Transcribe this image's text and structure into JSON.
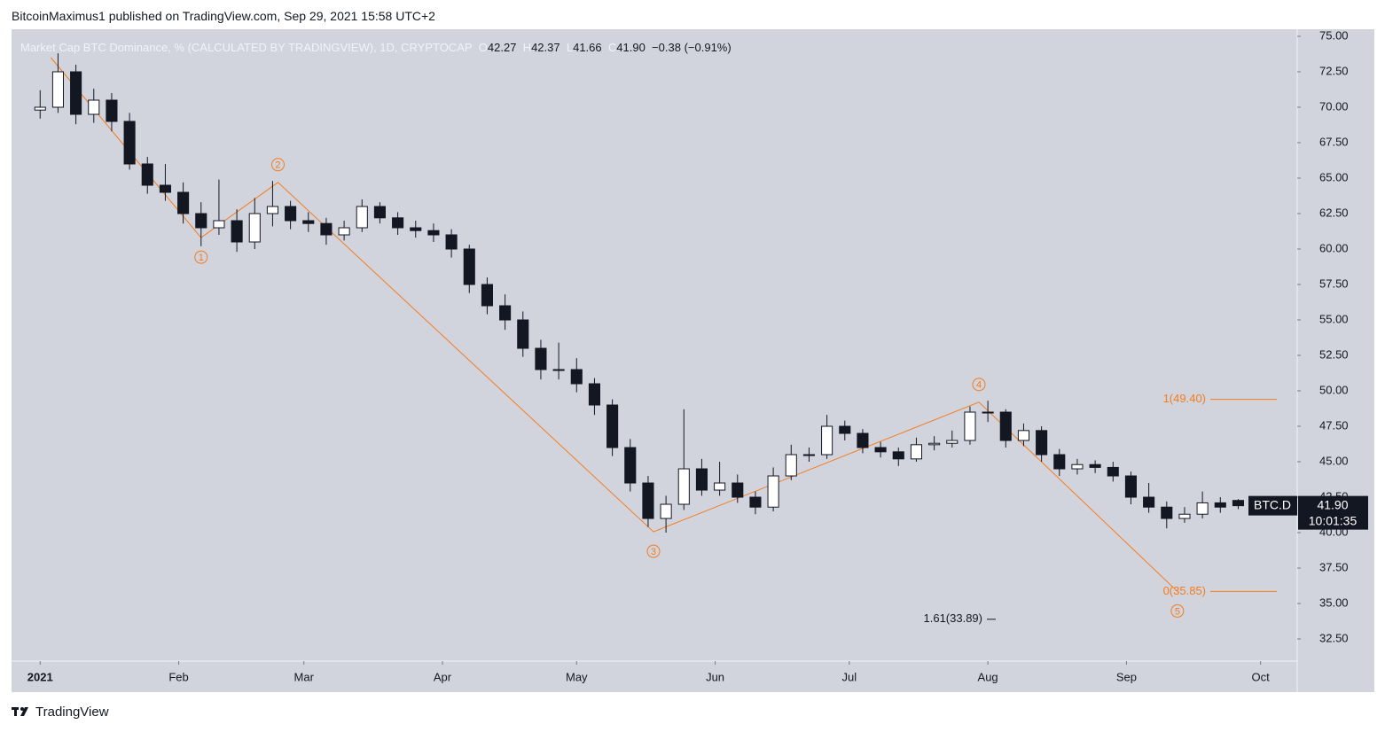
{
  "header": {
    "text": "BitcoinMaximus1 published on TradingView.com, Sep 29, 2021 15:58 UTC+2"
  },
  "footer": {
    "brand": "TradingView"
  },
  "chart_data": {
    "type": "candlestick",
    "title": "Market Cap BTC Dominance, % (CALCULATED BY TRADINGVIEW), 1D, CRYPTOCAP",
    "legend": {
      "letters": [
        "O",
        "H",
        "L",
        "C"
      ],
      "open": 42.27,
      "high": 42.37,
      "low": 41.66,
      "close": {
        "value": 41.9,
        "label": "41.90"
      },
      "change": {
        "value": -0.38,
        "label": "−0.38"
      },
      "change_pct": {
        "value": -0.91,
        "label": "(−0.91%)"
      }
    },
    "up_color": "#ffffff",
    "down_color": "#131722",
    "background": "#d1d4dc",
    "open": [
      69.8,
      70.0,
      72.5,
      69.5,
      70.5,
      69.0,
      66.0,
      64.5,
      64.0,
      62.5,
      61.5,
      62.0,
      60.5,
      62.5,
      63.0,
      62.0,
      61.8,
      61.0,
      61.5,
      63.0,
      62.2,
      61.5,
      61.3,
      61.0,
      60.0,
      57.5,
      56.0,
      55.0,
      53.0,
      51.5,
      51.5,
      50.5,
      49.0,
      46.0,
      43.5,
      41.0,
      42.0,
      44.5,
      43.0,
      43.5,
      42.5,
      41.8,
      44.0,
      45.5,
      45.5,
      47.5,
      47.0,
      46.0,
      45.7,
      45.2,
      46.2,
      46.3,
      46.5,
      48.5,
      48.5,
      46.5,
      47.2,
      45.5,
      44.5,
      44.8,
      44.6,
      44.0,
      42.5,
      41.8,
      41.0,
      41.3,
      42.1,
      42.27
    ],
    "high": [
      71.2,
      73.8,
      73.0,
      71.3,
      71.0,
      69.6,
      66.5,
      66.0,
      64.7,
      63.3,
      64.9,
      62.8,
      63.6,
      64.8,
      63.4,
      62.6,
      62.2,
      62.0,
      63.5,
      63.3,
      62.6,
      62.0,
      61.8,
      61.4,
      60.3,
      58.0,
      56.8,
      55.6,
      53.6,
      53.4,
      52.3,
      50.9,
      49.4,
      46.6,
      44.0,
      42.6,
      48.7,
      45.2,
      45.0,
      44.1,
      42.9,
      44.6,
      46.2,
      46.0,
      48.3,
      47.9,
      47.3,
      46.4,
      46.0,
      46.7,
      46.8,
      47.2,
      48.9,
      49.3,
      48.7,
      47.7,
      47.5,
      45.9,
      45.2,
      45.1,
      45.0,
      44.3,
      43.5,
      42.2,
      41.8,
      42.9,
      42.5,
      42.37
    ],
    "low": [
      69.2,
      69.6,
      68.8,
      68.9,
      68.3,
      65.6,
      63.9,
      63.4,
      61.8,
      60.2,
      61.0,
      59.8,
      60.0,
      61.6,
      61.4,
      61.2,
      60.3,
      60.6,
      61.2,
      61.8,
      61.0,
      60.8,
      60.5,
      59.4,
      56.9,
      55.4,
      54.3,
      52.4,
      50.8,
      50.8,
      49.9,
      48.3,
      45.4,
      42.9,
      40.4,
      40.0,
      41.6,
      42.6,
      42.6,
      42.1,
      41.3,
      41.5,
      43.7,
      45.0,
      45.2,
      46.5,
      45.6,
      45.3,
      44.7,
      45.0,
      45.8,
      46.0,
      46.2,
      47.8,
      46.0,
      46.1,
      45.0,
      44.0,
      44.1,
      44.2,
      43.6,
      42.0,
      41.4,
      40.3,
      40.7,
      41.0,
      41.4,
      41.66
    ],
    "close": [
      70.0,
      72.5,
      69.5,
      70.5,
      69.0,
      66.0,
      64.5,
      64.0,
      62.5,
      61.5,
      62.0,
      60.5,
      62.5,
      63.0,
      62.0,
      61.8,
      61.0,
      61.5,
      63.0,
      62.2,
      61.5,
      61.3,
      61.0,
      60.0,
      57.5,
      56.0,
      55.0,
      53.0,
      51.5,
      51.5,
      50.5,
      49.0,
      46.0,
      43.5,
      41.0,
      42.0,
      44.5,
      43.0,
      43.5,
      42.5,
      41.8,
      44.0,
      45.5,
      45.5,
      47.5,
      47.0,
      46.0,
      45.7,
      45.2,
      46.2,
      46.3,
      46.5,
      48.5,
      48.5,
      46.5,
      47.2,
      45.5,
      44.5,
      44.8,
      44.6,
      44.0,
      42.5,
      41.8,
      41.0,
      41.3,
      42.1,
      41.8,
      41.9
    ],
    "xlim": [
      -1.6,
      70.3
    ],
    "xticks": [
      {
        "value": 0,
        "label": "2021"
      },
      {
        "value": 7.75,
        "label": "Feb"
      },
      {
        "value": 14.75,
        "label": "Mar"
      },
      {
        "value": 22.5,
        "label": "Apr"
      },
      {
        "value": 30,
        "label": "May"
      },
      {
        "value": 37.75,
        "label": "Jun"
      },
      {
        "value": 45.25,
        "label": "Jul"
      },
      {
        "value": 53,
        "label": "Aug"
      },
      {
        "value": 60.75,
        "label": "Sep"
      },
      {
        "value": 68.25,
        "label": "Oct"
      }
    ],
    "ylim": [
      30.94,
      75.5
    ],
    "yticks": [
      {
        "value": 32.5,
        "label": "32.50"
      },
      {
        "value": 35,
        "label": "35.00"
      },
      {
        "value": 37.5,
        "label": "37.50"
      },
      {
        "value": 40,
        "label": "40.00"
      },
      {
        "value": 42.5,
        "label": "42.50"
      },
      {
        "value": 45,
        "label": "45.00"
      },
      {
        "value": 47.5,
        "label": "47.50"
      },
      {
        "value": 50,
        "label": "50.00"
      },
      {
        "value": 52.5,
        "label": "52.50"
      },
      {
        "value": 55,
        "label": "55.00"
      },
      {
        "value": 57.5,
        "label": "57.50"
      },
      {
        "value": 60,
        "label": "60.00"
      },
      {
        "value": 62.5,
        "label": "62.50"
      },
      {
        "value": 65,
        "label": "65.00"
      },
      {
        "value": 67.5,
        "label": "67.50"
      },
      {
        "value": 70,
        "label": "70.00"
      },
      {
        "value": 72.5,
        "label": "72.50"
      },
      {
        "value": 75,
        "label": "75.00"
      }
    ],
    "wave_color": "#f57c1f",
    "wave_start": {
      "x": 0.6,
      "y": 73.5
    },
    "waves": [
      {
        "label": "1",
        "x": 9,
        "y": 60.8,
        "side": "below"
      },
      {
        "label": "2",
        "x": 13.3,
        "y": 64.7,
        "side": "above"
      },
      {
        "label": "3",
        "x": 34.3,
        "y": 40.06,
        "side": "below"
      },
      {
        "label": "4",
        "x": 52.5,
        "y": 49.2,
        "side": "above"
      },
      {
        "label": "5",
        "x": 63.6,
        "y": 35.85,
        "side": "below"
      }
    ],
    "fib_levels": [
      {
        "value": 49.4,
        "label": "1(49.40)",
        "color": "#f57c1f"
      },
      {
        "value": 35.85,
        "label": "0(35.85)",
        "color": "#f57c1f"
      },
      {
        "value": 33.89,
        "label": "1.61(33.89)",
        "color": "#131722"
      }
    ],
    "price_tag": {
      "symbol": "BTC.D",
      "value": {
        "value": 41.9,
        "label": "41.90"
      },
      "countdown": "10:01:35"
    }
  }
}
